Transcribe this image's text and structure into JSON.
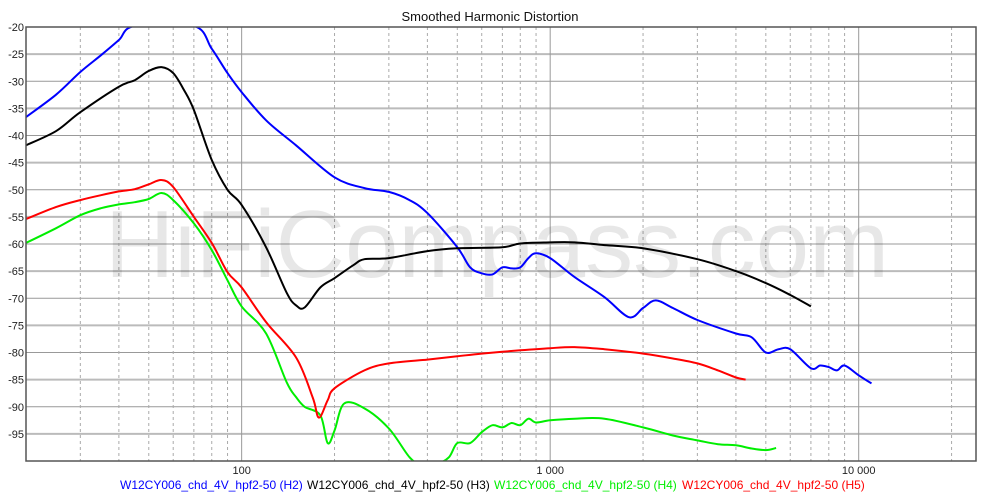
{
  "chart_data": {
    "type": "line",
    "title": "Smoothed Harmonic Distortion",
    "xlabel": "",
    "ylabel": "",
    "xscale": "log",
    "xlim": [
      20,
      24000
    ],
    "ylim": [
      -100,
      -20
    ],
    "grid": true,
    "legend_placement": "bottom",
    "watermark": "HiFiCompass.com",
    "x_ticks": [
      {
        "value": 100,
        "label": "100"
      },
      {
        "value": 1000,
        "label": "1 000"
      },
      {
        "value": 10000,
        "label": "10 000"
      }
    ],
    "y_ticks": [
      {
        "value": -20,
        "label": "-20"
      },
      {
        "value": -25,
        "label": "-25"
      },
      {
        "value": -30,
        "label": "-30"
      },
      {
        "value": -35,
        "label": "-35"
      },
      {
        "value": -40,
        "label": "-40"
      },
      {
        "value": -45,
        "label": "-45"
      },
      {
        "value": -50,
        "label": "-50"
      },
      {
        "value": -55,
        "label": "-55"
      },
      {
        "value": -60,
        "label": "-60"
      },
      {
        "value": -65,
        "label": "-65"
      },
      {
        "value": -70,
        "label": "-70"
      },
      {
        "value": -75,
        "label": "-75"
      },
      {
        "value": -80,
        "label": "-80"
      },
      {
        "value": -85,
        "label": "-85"
      },
      {
        "value": -90,
        "label": "-90"
      },
      {
        "value": -95,
        "label": "-95"
      }
    ],
    "series": [
      {
        "name": "W12CY006_chd_4V_hpf2-50 (H2)",
        "color": "#0000ff",
        "points": [
          [
            20,
            -36.6
          ],
          [
            25,
            -32.5
          ],
          [
            30,
            -28.3
          ],
          [
            35,
            -25.2
          ],
          [
            40,
            -22.4
          ],
          [
            45,
            -19.8
          ],
          [
            70,
            -19.8
          ],
          [
            80,
            -24
          ],
          [
            90,
            -28.5
          ],
          [
            100,
            -32
          ],
          [
            120,
            -37.2
          ],
          [
            150,
            -41.8
          ],
          [
            200,
            -47.7
          ],
          [
            250,
            -49.7
          ],
          [
            300,
            -50.4
          ],
          [
            350,
            -51.9
          ],
          [
            400,
            -54.3
          ],
          [
            500,
            -60.6
          ],
          [
            550,
            -64.3
          ],
          [
            600,
            -65.4
          ],
          [
            650,
            -65.6
          ],
          [
            700,
            -64.3
          ],
          [
            750,
            -64.5
          ],
          [
            800,
            -64.3
          ],
          [
            850,
            -62.6
          ],
          [
            900,
            -61.7
          ],
          [
            1000,
            -62.6
          ],
          [
            1200,
            -66.1
          ],
          [
            1500,
            -69.8
          ],
          [
            1800,
            -73.5
          ],
          [
            2000,
            -71.8
          ],
          [
            2200,
            -70.4
          ],
          [
            2500,
            -71.8
          ],
          [
            3000,
            -74
          ],
          [
            4000,
            -76.5
          ],
          [
            4500,
            -77.2
          ],
          [
            5000,
            -80
          ],
          [
            5500,
            -79.4
          ],
          [
            6000,
            -79.4
          ],
          [
            7000,
            -82.9
          ],
          [
            7500,
            -82.4
          ],
          [
            8000,
            -82.7
          ],
          [
            8500,
            -83.3
          ],
          [
            9000,
            -82.4
          ],
          [
            10000,
            -84.2
          ],
          [
            11000,
            -85.7
          ]
        ]
      },
      {
        "name": "W12CY006_chd_4V_hpf2-50 (H3)",
        "color": "#000000",
        "points": [
          [
            20,
            -41.8
          ],
          [
            25,
            -39.2
          ],
          [
            30,
            -35.7
          ],
          [
            40,
            -31
          ],
          [
            45,
            -29.8
          ],
          [
            50,
            -28.1
          ],
          [
            55,
            -27.4
          ],
          [
            60,
            -28.5
          ],
          [
            65,
            -31.6
          ],
          [
            70,
            -35.3
          ],
          [
            80,
            -44.5
          ],
          [
            90,
            -50
          ],
          [
            100,
            -52.8
          ],
          [
            120,
            -60.6
          ],
          [
            140,
            -69
          ],
          [
            150,
            -71.3
          ],
          [
            160,
            -71.7
          ],
          [
            180,
            -68
          ],
          [
            200,
            -66.3
          ],
          [
            230,
            -63.9
          ],
          [
            250,
            -62.8
          ],
          [
            300,
            -62.6
          ],
          [
            400,
            -61.3
          ],
          [
            500,
            -60.8
          ],
          [
            700,
            -60.6
          ],
          [
            800,
            -59.9
          ],
          [
            1000,
            -59.7
          ],
          [
            1200,
            -59.7
          ],
          [
            1500,
            -60.2
          ],
          [
            2000,
            -60.8
          ],
          [
            3000,
            -62.8
          ],
          [
            4000,
            -65
          ],
          [
            5000,
            -67.2
          ],
          [
            6000,
            -69.4
          ],
          [
            7000,
            -71.5
          ]
        ]
      },
      {
        "name": "W12CY006_chd_4V_hpf2-50 (H4)",
        "color": "#00ee00",
        "points": [
          [
            20,
            -59.8
          ],
          [
            25,
            -57.1
          ],
          [
            30,
            -54.7
          ],
          [
            35,
            -53.4
          ],
          [
            40,
            -52.7
          ],
          [
            45,
            -52.3
          ],
          [
            50,
            -51.7
          ],
          [
            55,
            -50.6
          ],
          [
            60,
            -51.9
          ],
          [
            70,
            -56.2
          ],
          [
            80,
            -61.1
          ],
          [
            90,
            -66.7
          ],
          [
            100,
            -71.5
          ],
          [
            120,
            -76.5
          ],
          [
            140,
            -85.5
          ],
          [
            150,
            -88.2
          ],
          [
            160,
            -90
          ],
          [
            180,
            -91.6
          ],
          [
            190,
            -96.7
          ],
          [
            200,
            -94.4
          ],
          [
            215,
            -89.4
          ],
          [
            250,
            -90.3
          ],
          [
            300,
            -94
          ],
          [
            350,
            -99.3
          ],
          [
            380,
            -100.5
          ],
          [
            430,
            -100.5
          ],
          [
            470,
            -99.3
          ],
          [
            500,
            -96.7
          ],
          [
            550,
            -96.7
          ],
          [
            600,
            -94.7
          ],
          [
            650,
            -93.4
          ],
          [
            700,
            -93.8
          ],
          [
            750,
            -93
          ],
          [
            800,
            -93.4
          ],
          [
            850,
            -92.2
          ],
          [
            900,
            -92.9
          ],
          [
            1000,
            -92.5
          ],
          [
            1200,
            -92.2
          ],
          [
            1500,
            -92.2
          ],
          [
            2000,
            -93.8
          ],
          [
            2500,
            -95.3
          ],
          [
            3000,
            -96.2
          ],
          [
            3500,
            -96.9
          ],
          [
            4000,
            -97.1
          ],
          [
            4500,
            -97.7
          ],
          [
            5000,
            -98
          ],
          [
            5400,
            -97.6
          ]
        ]
      },
      {
        "name": "W12CY006_chd_4V_hpf2-50 (H5)",
        "color": "#ff0000",
        "points": [
          [
            20,
            -55.4
          ],
          [
            25,
            -53.2
          ],
          [
            30,
            -51.9
          ],
          [
            35,
            -51
          ],
          [
            40,
            -50.3
          ],
          [
            45,
            -49.9
          ],
          [
            50,
            -49
          ],
          [
            55,
            -48.2
          ],
          [
            60,
            -49.5
          ],
          [
            70,
            -55
          ],
          [
            80,
            -59.8
          ],
          [
            90,
            -65.2
          ],
          [
            100,
            -68
          ],
          [
            120,
            -74.4
          ],
          [
            150,
            -80.9
          ],
          [
            170,
            -88.3
          ],
          [
            178,
            -92
          ],
          [
            190,
            -88.8
          ],
          [
            200,
            -86.6
          ],
          [
            250,
            -83.3
          ],
          [
            300,
            -82
          ],
          [
            400,
            -81.3
          ],
          [
            500,
            -80.7
          ],
          [
            600,
            -80.2
          ],
          [
            800,
            -79.6
          ],
          [
            1000,
            -79.2
          ],
          [
            1200,
            -79
          ],
          [
            1500,
            -79.4
          ],
          [
            2000,
            -80.2
          ],
          [
            2500,
            -81.1
          ],
          [
            3000,
            -82
          ],
          [
            3500,
            -83.3
          ],
          [
            4000,
            -84.6
          ],
          [
            4300,
            -85
          ]
        ]
      }
    ]
  }
}
